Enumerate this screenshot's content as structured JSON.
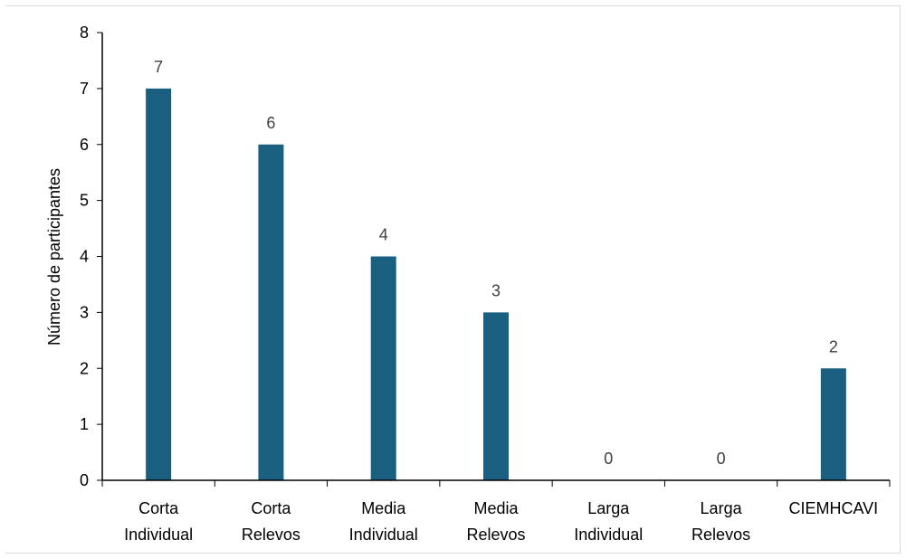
{
  "chart_data": {
    "type": "bar",
    "categories": [
      [
        "Corta",
        "Individual"
      ],
      [
        "Corta",
        "Relevos"
      ],
      [
        "Media",
        "Individual"
      ],
      [
        "Media",
        "Relevos"
      ],
      [
        "Larga",
        "Individual"
      ],
      [
        "Larga",
        "Relevos"
      ],
      [
        "CIEMHCAVI"
      ]
    ],
    "values": [
      7,
      6,
      4,
      3,
      0,
      0,
      2
    ],
    "data_labels": [
      "7",
      "6",
      "4",
      "3",
      "0",
      "0",
      "2"
    ],
    "title": "",
    "xlabel": "",
    "ylabel": "Número de participantes",
    "ylim": [
      0,
      8
    ],
    "yticks": [
      "0",
      "1",
      "2",
      "3",
      "4",
      "5",
      "6",
      "7",
      "8"
    ],
    "grid": false,
    "legend": "none",
    "bar_color": "#1a5e80",
    "axis_color": "#000000",
    "data_label_color": "#404040"
  }
}
